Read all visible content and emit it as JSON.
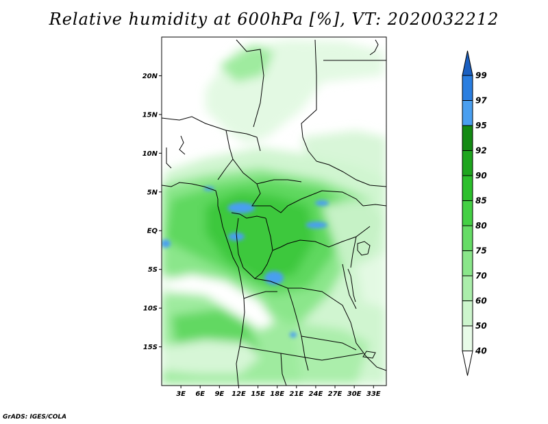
{
  "title": "Relative humidity at 600hPa [%], VT: 2020032212",
  "credit": "GrADS: IGES/COLA",
  "map": {
    "lon_range": [
      0,
      35
    ],
    "lat_range": [
      -20,
      25
    ],
    "lat_ticks": [
      {
        "value": 20,
        "label": "20N"
      },
      {
        "value": 15,
        "label": "15N"
      },
      {
        "value": 10,
        "label": "10N"
      },
      {
        "value": 5,
        "label": "5N"
      },
      {
        "value": 0,
        "label": "EQ"
      },
      {
        "value": -5,
        "label": "5S"
      },
      {
        "value": -10,
        "label": "10S"
      },
      {
        "value": -15,
        "label": "15S"
      }
    ],
    "lon_ticks": [
      {
        "value": 3,
        "label": "3E"
      },
      {
        "value": 6,
        "label": "6E"
      },
      {
        "value": 9,
        "label": "9E"
      },
      {
        "value": 12,
        "label": "12E"
      },
      {
        "value": 15,
        "label": "15E"
      },
      {
        "value": 18,
        "label": "18E"
      },
      {
        "value": 21,
        "label": "21E"
      },
      {
        "value": 24,
        "label": "24E"
      },
      {
        "value": 27,
        "label": "27E"
      },
      {
        "value": 30,
        "label": "30E"
      },
      {
        "value": 33,
        "label": "33E"
      }
    ]
  },
  "colorbar": {
    "levels": [
      "40",
      "50",
      "60",
      "70",
      "75",
      "80",
      "85",
      "90",
      "92",
      "95",
      "97",
      "99"
    ],
    "colors": [
      "#ffffff",
      "#e8fbe8",
      "#cdf5cd",
      "#abeeab",
      "#8ae68a",
      "#66dc66",
      "#44d044",
      "#2cbf2c",
      "#1ea51e",
      "#138a13",
      "#4a9ff0",
      "#2a7ee0",
      "#1a5fc0"
    ]
  }
}
